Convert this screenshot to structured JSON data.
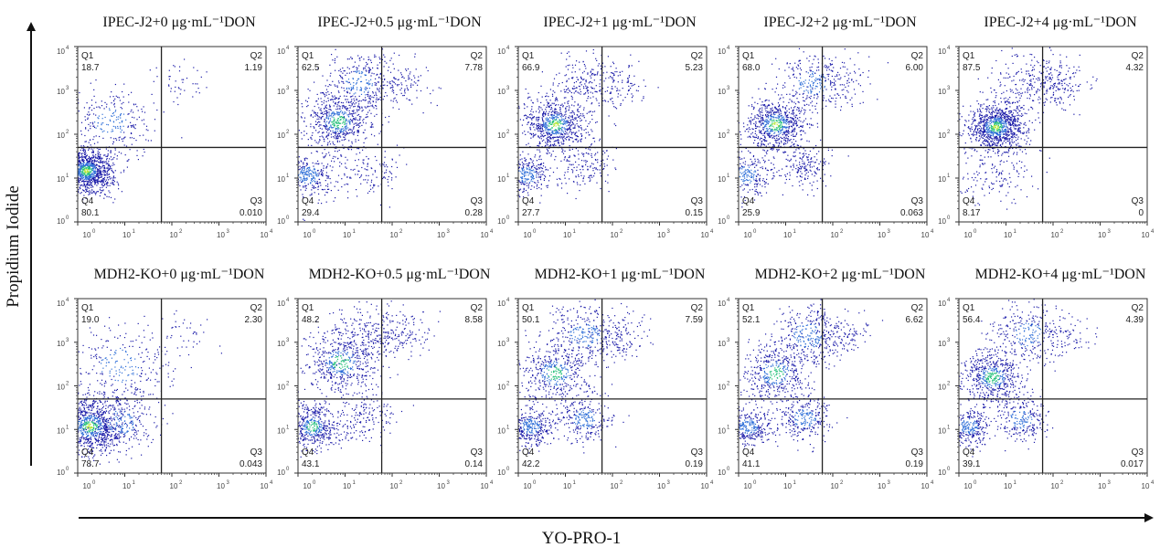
{
  "chart_data": {
    "type": "scatter",
    "subtype": "flow-cytometry-quadrant-dot-plot",
    "xlabel": "YO-PRO-1",
    "ylabel": "Propidium Iodide",
    "x_scale": "log",
    "y_scale": "log",
    "xlim": [
      1,
      10000
    ],
    "ylim": [
      1,
      10000
    ],
    "x_ticks": [
      "10^0",
      "10^1",
      "10^2",
      "10^3",
      "10^4"
    ],
    "y_ticks": [
      "10^0",
      "10^1",
      "10^2",
      "10^3",
      "10^4"
    ],
    "quadrant_names": [
      "Q1",
      "Q2",
      "Q3",
      "Q4"
    ],
    "gate": {
      "x": 60,
      "y": 50
    },
    "grid": false,
    "legend": "none",
    "layout": {
      "rows": 2,
      "cols": 5
    },
    "panels": [
      {
        "title": "IPEC-J2+0 μg·mL⁻¹DON",
        "Q1": "18.7",
        "Q2": "1.19",
        "Q3": "0.010",
        "Q4": "80.1",
        "populations": [
          {
            "x": 1.5,
            "y": 15,
            "weight": 0.8,
            "spread": 0.28
          },
          {
            "x": 5,
            "y": 200,
            "weight": 0.17,
            "spread": 0.45
          },
          {
            "x": 150,
            "y": 1500,
            "weight": 0.03,
            "spread": 0.3
          }
        ]
      },
      {
        "title": "IPEC-J2+0.5 μg·mL⁻¹DON",
        "Q1": "62.5",
        "Q2": "7.78",
        "Q3": "0.28",
        "Q4": "29.4",
        "populations": [
          {
            "x": 1.6,
            "y": 12,
            "weight": 0.22,
            "spread": 0.28
          },
          {
            "x": 7,
            "y": 200,
            "weight": 0.4,
            "spread": 0.35
          },
          {
            "x": 20,
            "y": 1500,
            "weight": 0.22,
            "spread": 0.4
          },
          {
            "x": 30,
            "y": 15,
            "weight": 0.09,
            "spread": 0.35
          },
          {
            "x": 150,
            "y": 1500,
            "weight": 0.07,
            "spread": 0.3
          }
        ]
      },
      {
        "title": "IPEC-J2+1 μg·mL⁻¹DON",
        "Q1": "66.9",
        "Q2": "5.23",
        "Q3": "0.15",
        "Q4": "27.7",
        "populations": [
          {
            "x": 1.5,
            "y": 12,
            "weight": 0.2,
            "spread": 0.25
          },
          {
            "x": 6,
            "y": 170,
            "weight": 0.48,
            "spread": 0.33
          },
          {
            "x": 25,
            "y": 1500,
            "weight": 0.15,
            "spread": 0.4
          },
          {
            "x": 25,
            "y": 20,
            "weight": 0.11,
            "spread": 0.3
          },
          {
            "x": 150,
            "y": 1500,
            "weight": 0.06,
            "spread": 0.3
          }
        ]
      },
      {
        "title": "IPEC-J2+2 μg·mL⁻¹DON",
        "Q1": "68.0",
        "Q2": "6.00",
        "Q3": "0.063",
        "Q4": "25.9",
        "populations": [
          {
            "x": 1.4,
            "y": 12,
            "weight": 0.18,
            "spread": 0.28
          },
          {
            "x": 6,
            "y": 170,
            "weight": 0.46,
            "spread": 0.33
          },
          {
            "x": 35,
            "y": 1500,
            "weight": 0.18,
            "spread": 0.38
          },
          {
            "x": 25,
            "y": 20,
            "weight": 0.12,
            "spread": 0.3
          },
          {
            "x": 150,
            "y": 1500,
            "weight": 0.06,
            "spread": 0.3
          }
        ]
      },
      {
        "title": "IPEC-J2+4 μg·mL⁻¹DON",
        "Q1": "87.5",
        "Q2": "4.32",
        "Q3": "0",
        "Q4": "8.17",
        "populations": [
          {
            "x": 6,
            "y": 150,
            "weight": 0.66,
            "spread": 0.3
          },
          {
            "x": 30,
            "y": 1500,
            "weight": 0.15,
            "spread": 0.38
          },
          {
            "x": 5,
            "y": 15,
            "weight": 0.11,
            "spread": 0.45
          },
          {
            "x": 150,
            "y": 1500,
            "weight": 0.08,
            "spread": 0.28
          }
        ]
      },
      {
        "title": "MDH2-KO+0 μg·mL⁻¹DON",
        "Q1": "19.0",
        "Q2": "2.30",
        "Q3": "0.043",
        "Q4": "78.7",
        "populations": [
          {
            "x": 1.8,
            "y": 12,
            "weight": 0.62,
            "spread": 0.35
          },
          {
            "x": 8,
            "y": 15,
            "weight": 0.17,
            "spread": 0.4
          },
          {
            "x": 8,
            "y": 300,
            "weight": 0.18,
            "spread": 0.55
          },
          {
            "x": 150,
            "y": 1500,
            "weight": 0.03,
            "spread": 0.35
          }
        ]
      },
      {
        "title": "MDH2-KO+0.5 μg·mL⁻¹DON",
        "Q1": "48.2",
        "Q2": "8.58",
        "Q3": "0.14",
        "Q4": "43.1",
        "populations": [
          {
            "x": 2,
            "y": 12,
            "weight": 0.32,
            "spread": 0.28
          },
          {
            "x": 25,
            "y": 20,
            "weight": 0.12,
            "spread": 0.33
          },
          {
            "x": 8,
            "y": 350,
            "weight": 0.34,
            "spread": 0.4
          },
          {
            "x": 25,
            "y": 1800,
            "weight": 0.13,
            "spread": 0.38
          },
          {
            "x": 150,
            "y": 1500,
            "weight": 0.09,
            "spread": 0.3
          }
        ]
      },
      {
        "title": "MDH2-KO+1 μg·mL⁻¹DON",
        "Q1": "50.1",
        "Q2": "7.59",
        "Q3": "0.19",
        "Q4": "42.2",
        "populations": [
          {
            "x": 1.8,
            "y": 12,
            "weight": 0.24,
            "spread": 0.25
          },
          {
            "x": 25,
            "y": 18,
            "weight": 0.18,
            "spread": 0.3
          },
          {
            "x": 6,
            "y": 200,
            "weight": 0.3,
            "spread": 0.38
          },
          {
            "x": 25,
            "y": 1500,
            "weight": 0.2,
            "spread": 0.4
          },
          {
            "x": 150,
            "y": 1500,
            "weight": 0.08,
            "spread": 0.3
          }
        ]
      },
      {
        "title": "MDH2-KO+2 μg·mL⁻¹DON",
        "Q1": "52.1",
        "Q2": "6.62",
        "Q3": "0.19",
        "Q4": "41.1",
        "populations": [
          {
            "x": 1.6,
            "y": 12,
            "weight": 0.22,
            "spread": 0.25
          },
          {
            "x": 25,
            "y": 18,
            "weight": 0.19,
            "spread": 0.3
          },
          {
            "x": 6,
            "y": 200,
            "weight": 0.3,
            "spread": 0.38
          },
          {
            "x": 30,
            "y": 1500,
            "weight": 0.22,
            "spread": 0.4
          },
          {
            "x": 150,
            "y": 1500,
            "weight": 0.07,
            "spread": 0.3
          }
        ]
      },
      {
        "title": "MDH2-KO+4 μg·mL⁻¹DON",
        "Q1": "56.4",
        "Q2": "4.39",
        "Q3": "0.017",
        "Q4": "39.1",
        "populations": [
          {
            "x": 1.6,
            "y": 12,
            "weight": 0.22,
            "spread": 0.25
          },
          {
            "x": 20,
            "y": 18,
            "weight": 0.17,
            "spread": 0.3
          },
          {
            "x": 5,
            "y": 160,
            "weight": 0.37,
            "spread": 0.33
          },
          {
            "x": 30,
            "y": 1500,
            "weight": 0.19,
            "spread": 0.4
          },
          {
            "x": 150,
            "y": 1500,
            "weight": 0.05,
            "spread": 0.3
          }
        ]
      }
    ]
  },
  "colors": {
    "low": "#1a1aa8",
    "mid": "#2f6fd8",
    "high": "#25c07a",
    "peak": "#b6e83a",
    "frame": "#333333",
    "gate": "#222222",
    "background": "#ffffff"
  }
}
